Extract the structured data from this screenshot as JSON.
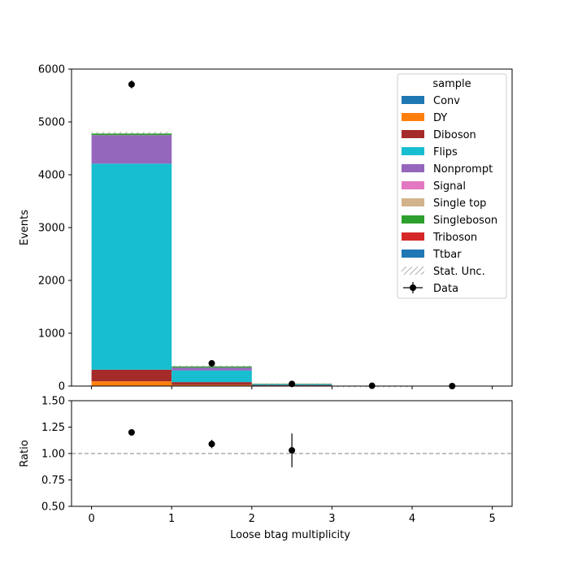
{
  "chart_data": {
    "type": "bar",
    "stacked": true,
    "xlabel": "Loose btag multiplicity",
    "bin_edges": [
      0,
      1,
      2,
      3,
      4,
      5
    ],
    "main_panel": {
      "ylabel": "Events",
      "ylim": [
        0,
        6000
      ],
      "yticks": [
        0,
        1000,
        2000,
        3000,
        4000,
        5000,
        6000
      ],
      "stack": [
        {
          "name": "Conv",
          "color": "#1f77b4",
          "values": [
            0,
            0,
            0,
            0,
            0
          ]
        },
        {
          "name": "DY",
          "color": "#ff7f0e",
          "values": [
            90,
            20,
            5,
            1,
            0
          ]
        },
        {
          "name": "Diboson",
          "color": "#a52a2a",
          "values": [
            220,
            55,
            10,
            1,
            0
          ]
        },
        {
          "name": "Flips",
          "color": "#17becf",
          "values": [
            3900,
            220,
            18,
            3,
            0
          ]
        },
        {
          "name": "Nonprompt",
          "color": "#9467bd",
          "values": [
            540,
            55,
            3,
            0,
            0
          ]
        },
        {
          "name": "Signal",
          "color": "#e377c2",
          "values": [
            0,
            0,
            0,
            0,
            0
          ]
        },
        {
          "name": "Single top",
          "color": "#d2b48c",
          "values": [
            0,
            0,
            0,
            0,
            0
          ]
        },
        {
          "name": "Singleboson",
          "color": "#2ca02c",
          "values": [
            30,
            22,
            8,
            1,
            0
          ]
        },
        {
          "name": "Triboson",
          "color": "#d62728",
          "values": [
            0,
            0,
            0,
            0,
            0
          ]
        },
        {
          "name": "Ttbar",
          "color": "#1f77b4",
          "values": [
            0,
            0,
            0,
            0,
            0
          ]
        }
      ],
      "stat_unc": [
        30,
        15,
        5,
        1,
        0
      ],
      "data": {
        "name": "Data",
        "x": [
          0.5,
          1.5,
          2.5,
          3.5,
          4.5
        ],
        "y": [
          5710,
          430,
          40,
          5,
          0
        ],
        "yerr": [
          75,
          21,
          6,
          2,
          0
        ]
      }
    },
    "ratio_panel": {
      "ylabel": "Ratio",
      "ylim": [
        0.5,
        1.5
      ],
      "yticks": [
        "0.50",
        "0.75",
        "1.00",
        "1.25",
        "1.50"
      ],
      "reference_line": 1.0,
      "x": [
        0.5,
        1.5,
        2.5
      ],
      "y": [
        1.2,
        1.09,
        1.03
      ],
      "yerr": [
        0.015,
        0.04,
        0.16
      ]
    },
    "xticks": [
      "0",
      "1",
      "2",
      "3",
      "4",
      "5"
    ],
    "legend": {
      "title": "sample",
      "placement": "top-right",
      "stat_label": "Stat. Unc."
    }
  }
}
